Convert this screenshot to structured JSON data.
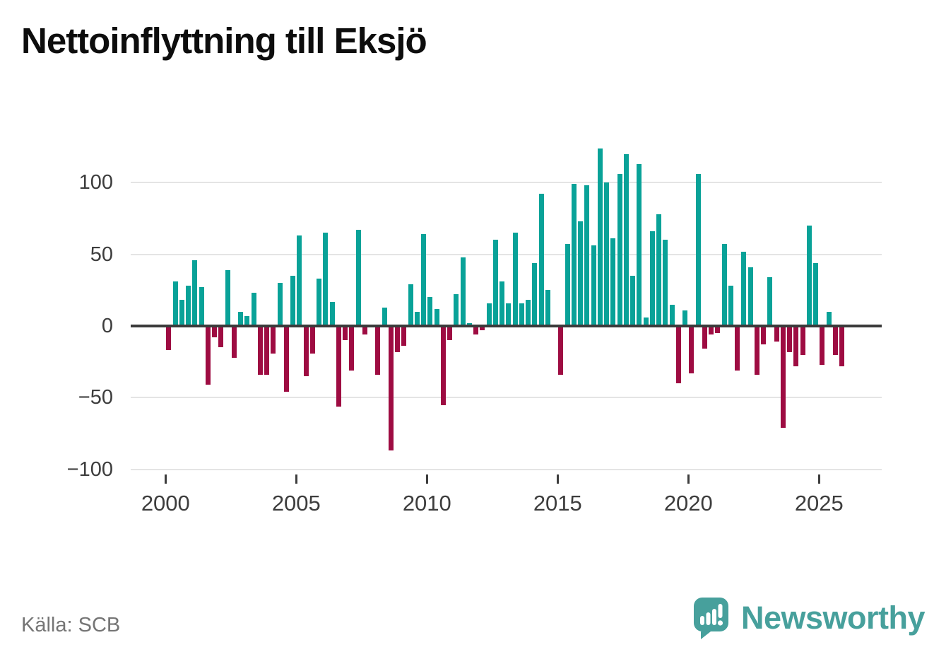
{
  "title": "Nettoinflyttning till Eksjö",
  "source": "Källa: SCB",
  "brand": {
    "name": "Newsworthy"
  },
  "chart_data": {
    "type": "bar",
    "title": "Nettoinflyttning till Eksjö",
    "xlabel": "",
    "ylabel": "",
    "legend": "none",
    "grid": "horizontal",
    "ylim": [
      -100,
      130
    ],
    "frequency": "quarterly",
    "colors": {
      "positive": "#09a298",
      "negative": "#9e0c42"
    },
    "y_axis": {
      "ticks": [
        100,
        50,
        0,
        -50,
        -100
      ],
      "labels": [
        "100",
        "50",
        "0",
        "−50",
        "−100"
      ]
    },
    "x_axis": {
      "labels": [
        "2000",
        "2005",
        "2010",
        "2015",
        "2020",
        "2025"
      ]
    },
    "categories": [
      "2000 Q1",
      "2000 Q2",
      "2000 Q3",
      "2000 Q4",
      "2001 Q1",
      "2001 Q2",
      "2001 Q3",
      "2001 Q4",
      "2002 Q1",
      "2002 Q2",
      "2002 Q3",
      "2002 Q4",
      "2003 Q1",
      "2003 Q2",
      "2003 Q3",
      "2003 Q4",
      "2004 Q1",
      "2004 Q2",
      "2004 Q3",
      "2004 Q4",
      "2005 Q1",
      "2005 Q2",
      "2005 Q3",
      "2005 Q4",
      "2006 Q1",
      "2006 Q2",
      "2006 Q3",
      "2006 Q4",
      "2007 Q1",
      "2007 Q2",
      "2007 Q3",
      "2007 Q4",
      "2008 Q1",
      "2008 Q2",
      "2008 Q3",
      "2008 Q4",
      "2009 Q1",
      "2009 Q2",
      "2009 Q3",
      "2009 Q4",
      "2010 Q1",
      "2010 Q2",
      "2010 Q3",
      "2010 Q4",
      "2011 Q1",
      "2011 Q2",
      "2011 Q3",
      "2011 Q4",
      "2012 Q1",
      "2012 Q2",
      "2012 Q3",
      "2012 Q4",
      "2013 Q1",
      "2013 Q2",
      "2013 Q3",
      "2013 Q4",
      "2014 Q1",
      "2014 Q2",
      "2014 Q3",
      "2014 Q4",
      "2015 Q1",
      "2015 Q2",
      "2015 Q3",
      "2015 Q4",
      "2016 Q1",
      "2016 Q2",
      "2016 Q3",
      "2016 Q4",
      "2017 Q1",
      "2017 Q2",
      "2017 Q3",
      "2017 Q4",
      "2018 Q1",
      "2018 Q2",
      "2018 Q3",
      "2018 Q4",
      "2019 Q1",
      "2019 Q2",
      "2019 Q3",
      "2019 Q4",
      "2020 Q1",
      "2020 Q2",
      "2020 Q3",
      "2020 Q4",
      "2021 Q1",
      "2021 Q2",
      "2021 Q3",
      "2021 Q4",
      "2022 Q1",
      "2022 Q2",
      "2022 Q3",
      "2022 Q4",
      "2023 Q1",
      "2023 Q2",
      "2023 Q3",
      "2023 Q4",
      "2024 Q1",
      "2024 Q2",
      "2024 Q3",
      "2024 Q4",
      "2025 Q1",
      "2025 Q2",
      "2025 Q3",
      "2025 Q4"
    ],
    "values": [
      -17,
      31,
      18,
      28,
      46,
      27,
      -41,
      -8,
      -15,
      39,
      -22,
      10,
      7,
      23,
      -34,
      -34,
      -19,
      30,
      -46,
      35,
      63,
      -35,
      -19,
      33,
      65,
      17,
      -56,
      -10,
      -31,
      67,
      -6,
      0,
      -34,
      13,
      -87,
      -18,
      -14,
      29,
      10,
      64,
      20,
      12,
      -55,
      -10,
      22,
      48,
      2,
      -6,
      -3,
      16,
      60,
      31,
      16,
      65,
      16,
      18,
      44,
      92,
      25,
      0,
      -34,
      57,
      99,
      73,
      98,
      56,
      124,
      100,
      61,
      106,
      120,
      35,
      113,
      6,
      66,
      78,
      60,
      15,
      -40,
      11,
      -33,
      106,
      -16,
      -6,
      -5,
      57,
      28,
      -31,
      52,
      41,
      -34,
      -13,
      34,
      -11,
      -71,
      -18,
      -28,
      -20,
      70,
      44,
      -27,
      10,
      -20,
      -28
    ]
  }
}
